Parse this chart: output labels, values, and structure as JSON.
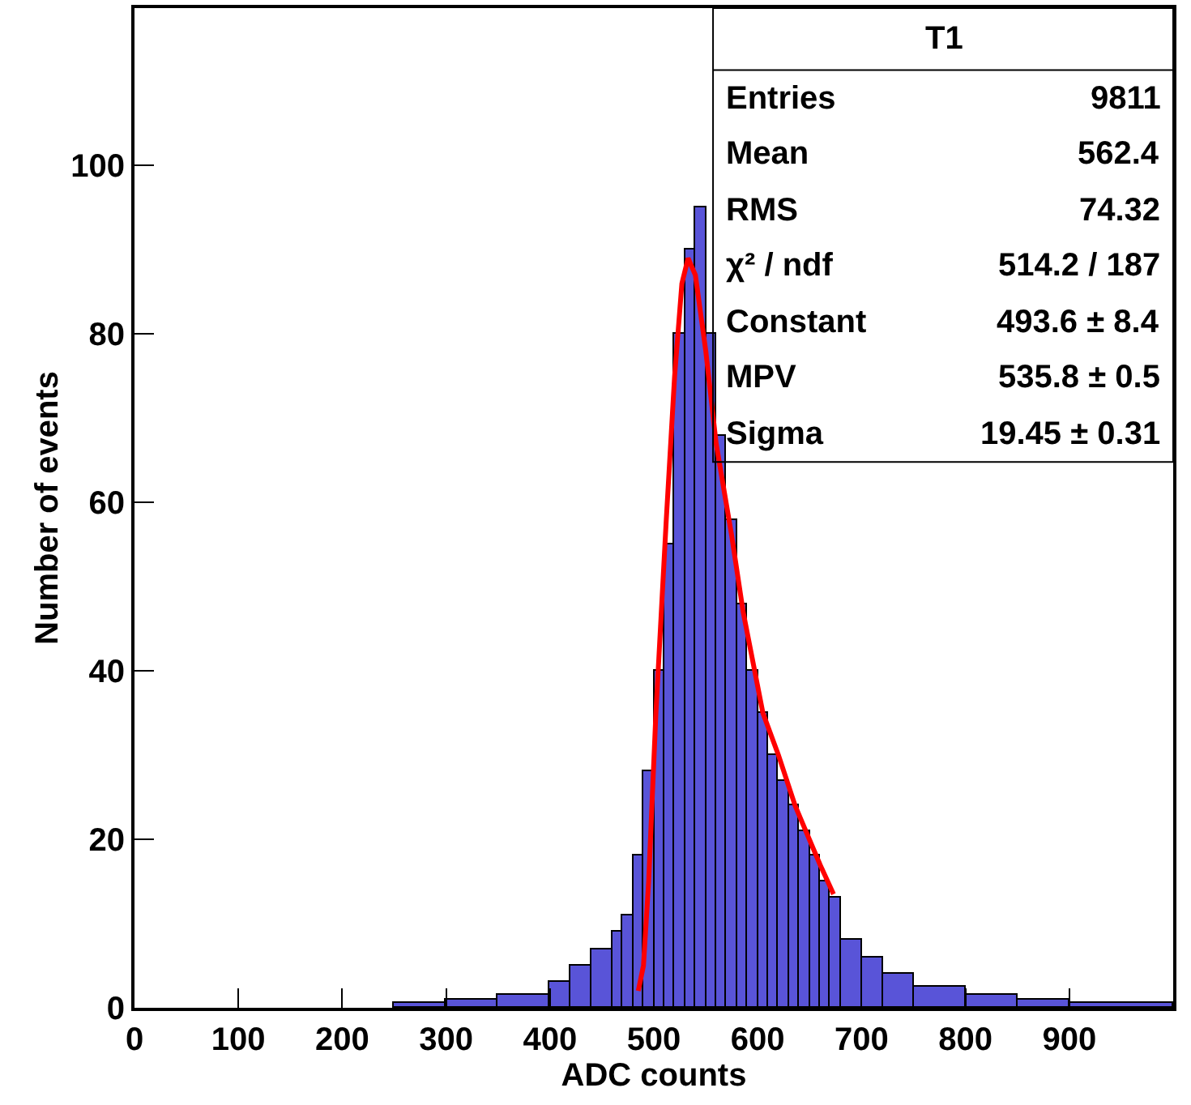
{
  "chart_data": {
    "type": "histogram",
    "xlabel": "ADC counts",
    "ylabel": "Number of events",
    "xlim": [
      0,
      1000
    ],
    "xticks": [
      0,
      100,
      200,
      300,
      400,
      500,
      600,
      700,
      800,
      900
    ],
    "ylim": [
      0,
      118.7
    ],
    "yticks": [
      0,
      20,
      40,
      60,
      80,
      100
    ],
    "series": [
      {
        "color": "#5954d8",
        "bins": [
          250,
          300,
          350,
          400,
          420,
          440,
          460,
          470,
          480,
          490,
          500,
          510,
          520,
          530,
          540,
          550,
          560,
          570,
          580,
          590,
          600,
          610,
          620,
          630,
          640,
          650,
          660,
          670,
          680,
          700,
          720,
          750,
          800,
          850,
          900,
          1000
        ],
        "values": [
          0.5,
          1,
          1.5,
          3,
          5,
          7,
          9,
          11,
          18,
          28,
          40,
          55,
          80,
          90,
          95,
          80,
          68,
          58,
          48,
          40,
          35,
          30,
          27,
          24,
          21,
          18,
          15,
          13,
          8,
          6,
          4,
          2.5,
          1.5,
          1,
          0.5
        ]
      },
      {
        "type": "line",
        "color": "#ff0000",
        "x": [
          485,
          490,
          495,
          502,
          512,
          520,
          527,
          533,
          540,
          550,
          560,
          575,
          586,
          605,
          620,
          636,
          660,
          673
        ],
        "values": [
          2,
          5,
          15,
          35,
          58,
          75,
          86,
          89,
          87,
          78,
          67,
          56,
          47,
          35,
          30,
          24,
          17,
          13.5
        ]
      }
    ],
    "annotations": [
      "T1",
      "Entries",
      "9811",
      "Mean",
      "562.4",
      "RMS",
      "74.32",
      "χ² / ndf",
      "514.2 / 187",
      "Constant",
      "493.6 ± 8.4",
      "MPV",
      "535.8 ± 0.5",
      "Sigma",
      "19.45 ± 0.31"
    ]
  }
}
